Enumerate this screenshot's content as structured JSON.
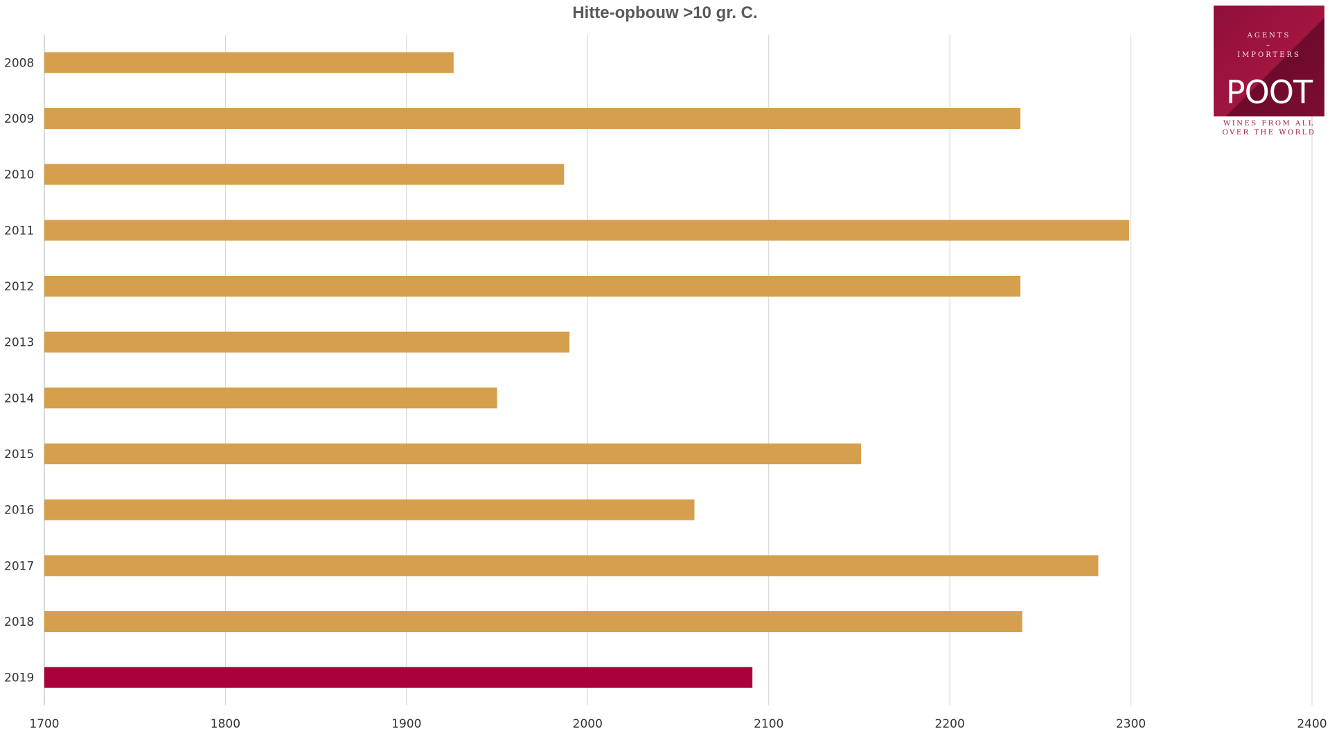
{
  "chart_data": {
    "type": "bar",
    "orientation": "horizontal",
    "title": "Hitte-opbouw >10 gr. C.",
    "xlabel": "",
    "ylabel": "",
    "xlim": [
      1700,
      2400
    ],
    "x_ticks": [
      "1700",
      "1800",
      "1900",
      "2000",
      "2100",
      "2200",
      "2300",
      "2400"
    ],
    "categories": [
      "2008",
      "2009",
      "2010",
      "2011",
      "2012",
      "2013",
      "2014",
      "2015",
      "2016",
      "2017",
      "2018",
      "2019"
    ],
    "values": [
      1926,
      2239,
      1987,
      2299,
      2239,
      1990,
      1950,
      2151,
      2059,
      2282,
      2240,
      2091
    ],
    "grid": true,
    "legend": "none",
    "colors": {
      "default_bar": "#D59F4D",
      "highlight_bar": "#AA003C",
      "highlight_category": "2019"
    }
  },
  "logo": {
    "line1": "AGENTS",
    "dash": "–",
    "line2": "IMPORTERS",
    "brand": "POOT",
    "tagline1": "WINES FROM ALL",
    "tagline2": "OVER THE WORLD"
  }
}
